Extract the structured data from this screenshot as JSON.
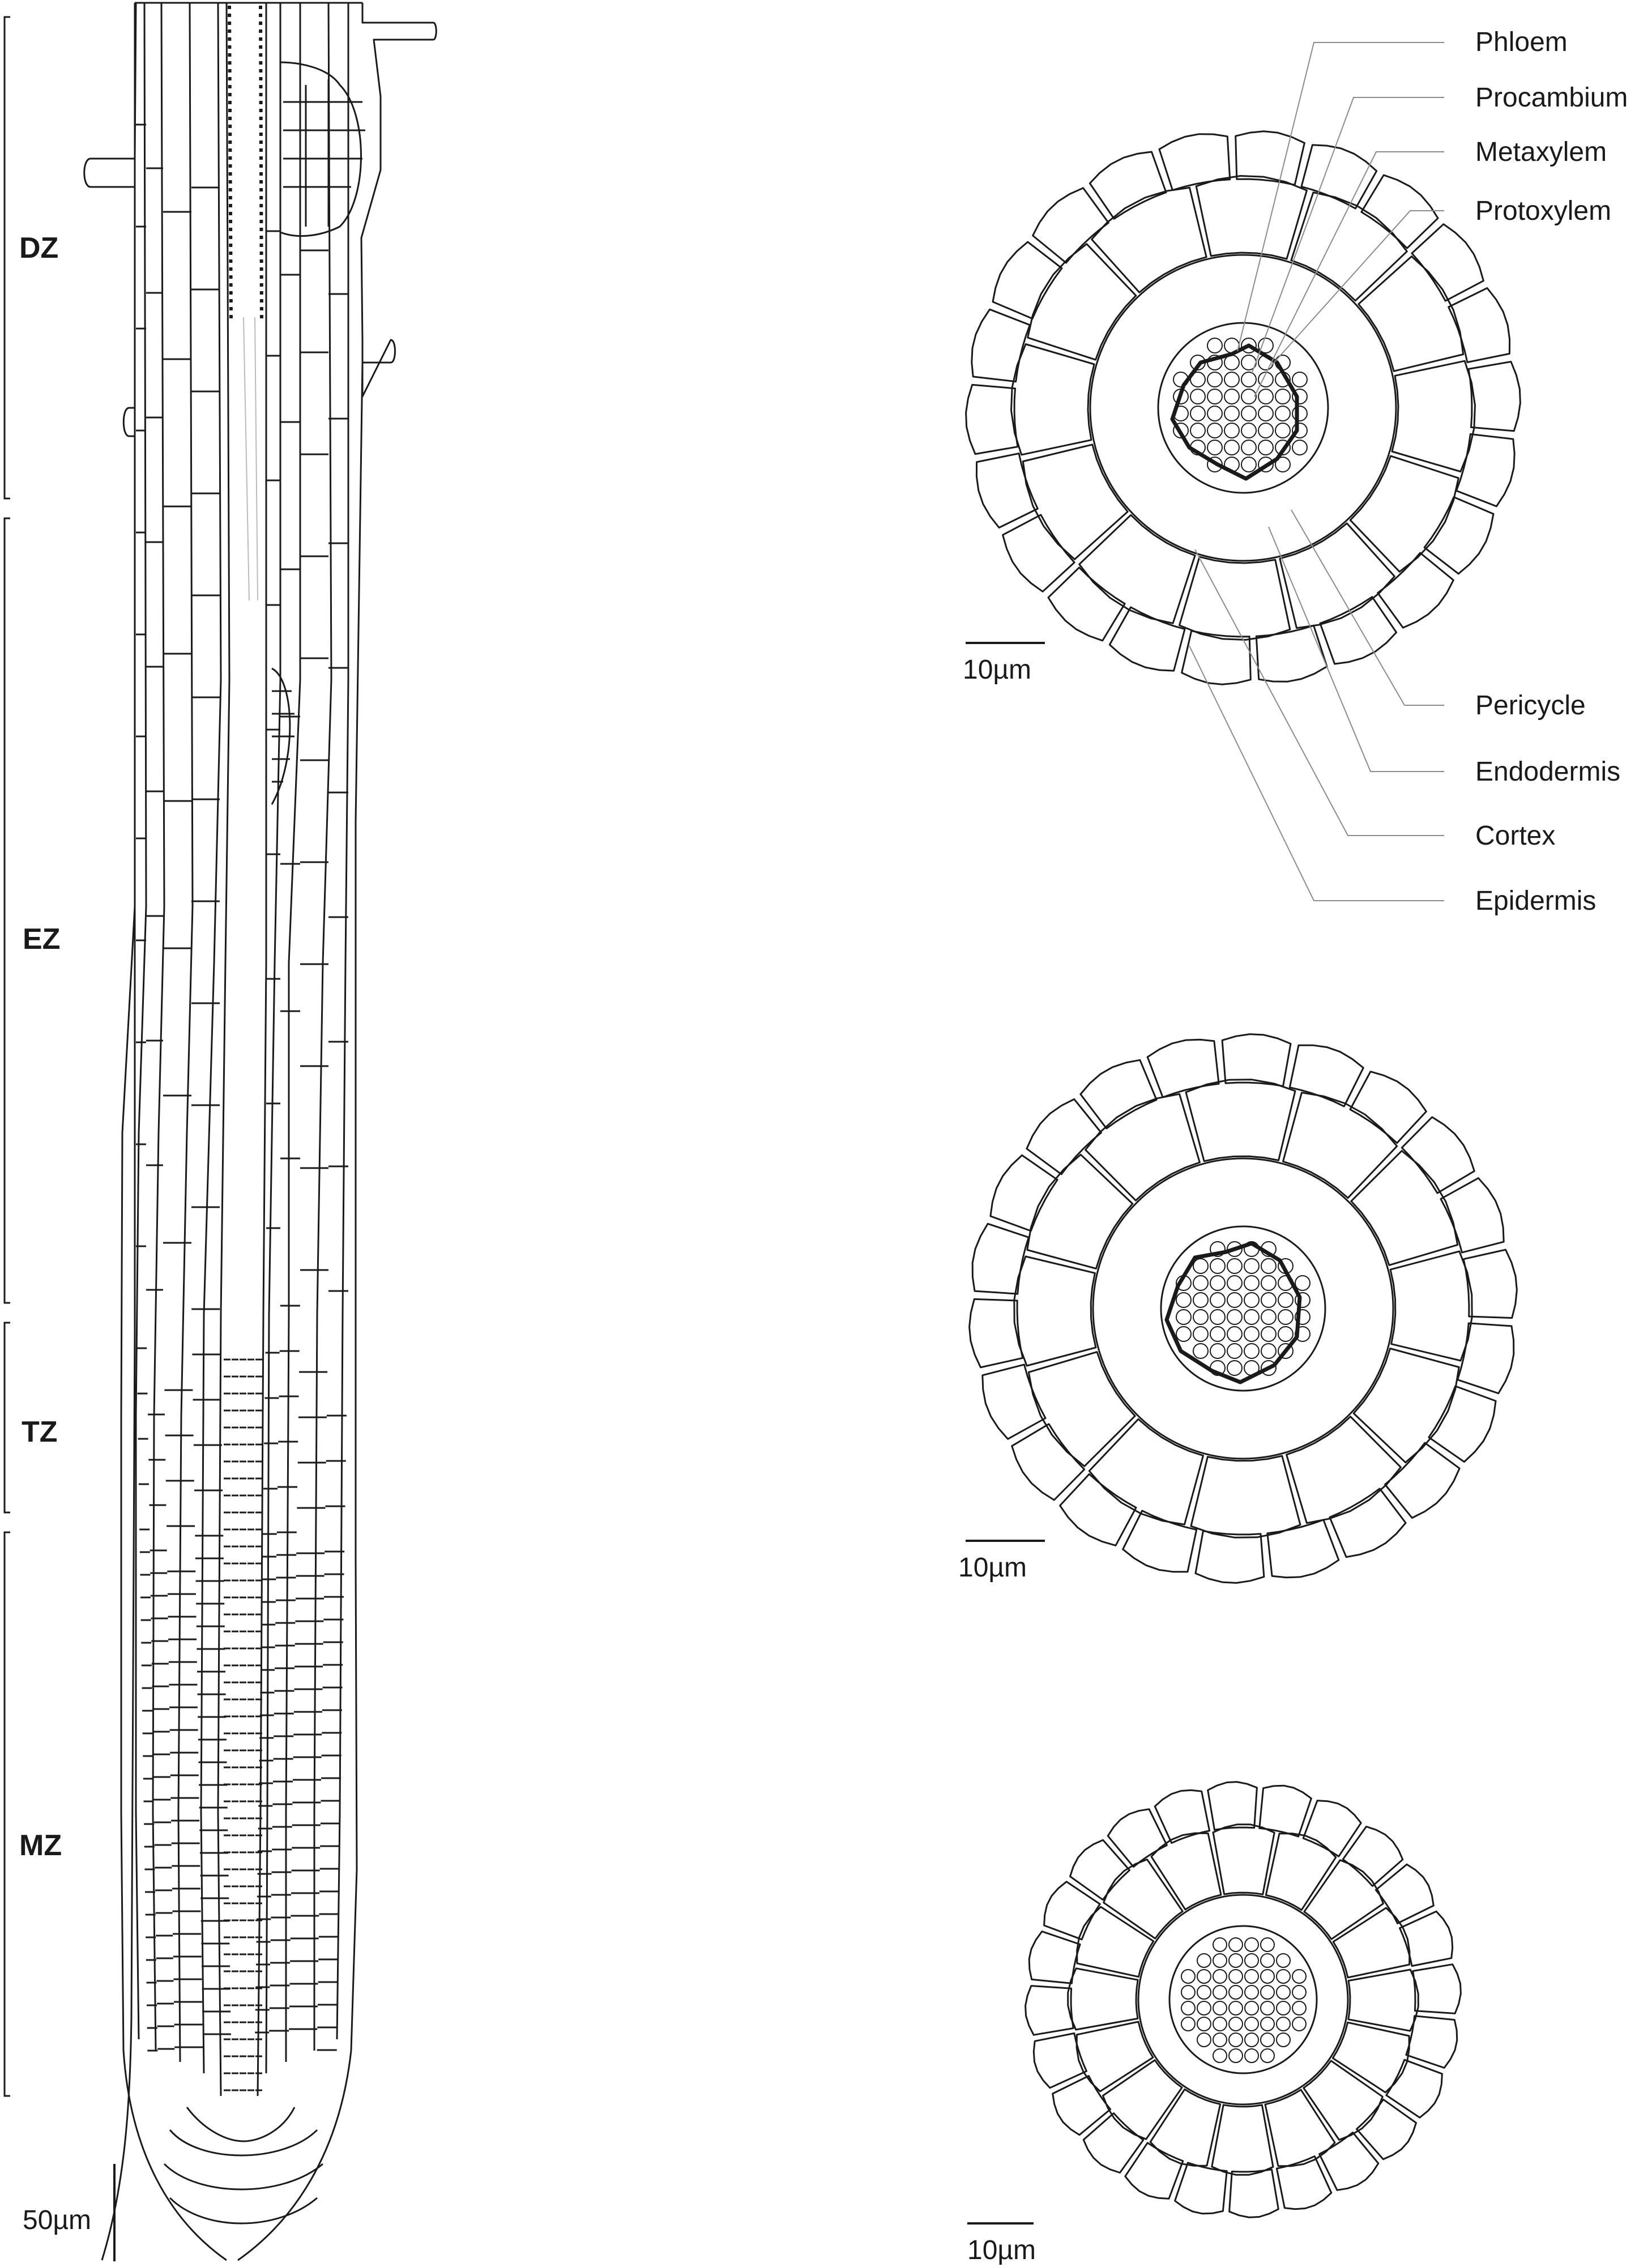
{
  "zones": [
    {
      "id": "dz",
      "label": "DZ"
    },
    {
      "id": "ez",
      "label": "EZ"
    },
    {
      "id": "tz",
      "label": "TZ"
    },
    {
      "id": "mz",
      "label": "MZ"
    }
  ],
  "tissue_labels": {
    "top": [
      "Phloem",
      "Procambium",
      "Metaxylem",
      "Protoxylem"
    ],
    "bottom": [
      "Pericycle",
      "Endodermis",
      "Cortex",
      "Epidermis"
    ]
  },
  "scale_bars": {
    "longitudinal": "50µm",
    "section_1": "10µm",
    "section_2": "10µm",
    "section_3": "10µm"
  },
  "colors": {
    "line": "#1a1a1a",
    "leader": "#8c8c8c",
    "background": "#ffffff"
  }
}
